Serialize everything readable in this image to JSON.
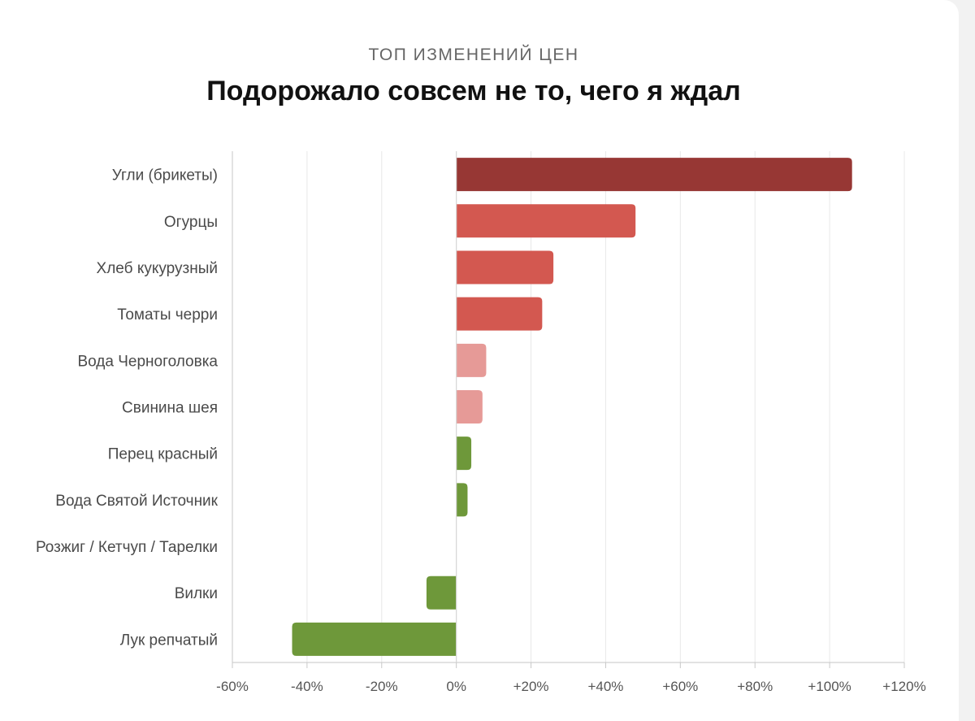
{
  "header": {
    "kicker": "ТОП ИЗМЕНЕНИЙ ЦЕН",
    "title": "Подорожало совсем не то, чего я ждал"
  },
  "chart_data": {
    "type": "bar",
    "orientation": "horizontal",
    "title": "Подорожало совсем не то, чего я ждал",
    "subtitle": "ТОП ИЗМЕНЕНИЙ ЦЕН",
    "categories": [
      "Угли (брикеты)",
      "Огурцы",
      "Хлеб кукурузный",
      "Томаты черри",
      "Вода Черноголовка",
      "Свинина шея",
      "Перец красный",
      "Вода Святой Источник",
      "Розжиг / Кетчуп / Тарелки",
      "Вилки",
      "Лук репчатый"
    ],
    "values": [
      106,
      48,
      26,
      23,
      8,
      7,
      4,
      3,
      0,
      -8,
      -44
    ],
    "bar_colors": [
      "#973734",
      "#d35850",
      "#d35850",
      "#d35850",
      "#e69a97",
      "#e69a97",
      "#6e983a",
      "#6e983a",
      "#6e983a",
      "#6e983a",
      "#6e983a"
    ],
    "xlim": [
      -60,
      120
    ],
    "xticks": [
      -60,
      -40,
      -20,
      0,
      20,
      40,
      60,
      80,
      100,
      120
    ],
    "xtick_labels": [
      "-60%",
      "-40%",
      "-20%",
      "0%",
      "+20%",
      "+40%",
      "+60%",
      "+80%",
      "+100%",
      "+120%"
    ],
    "grid": "vertical",
    "xlabel": "",
    "ylabel": ""
  }
}
